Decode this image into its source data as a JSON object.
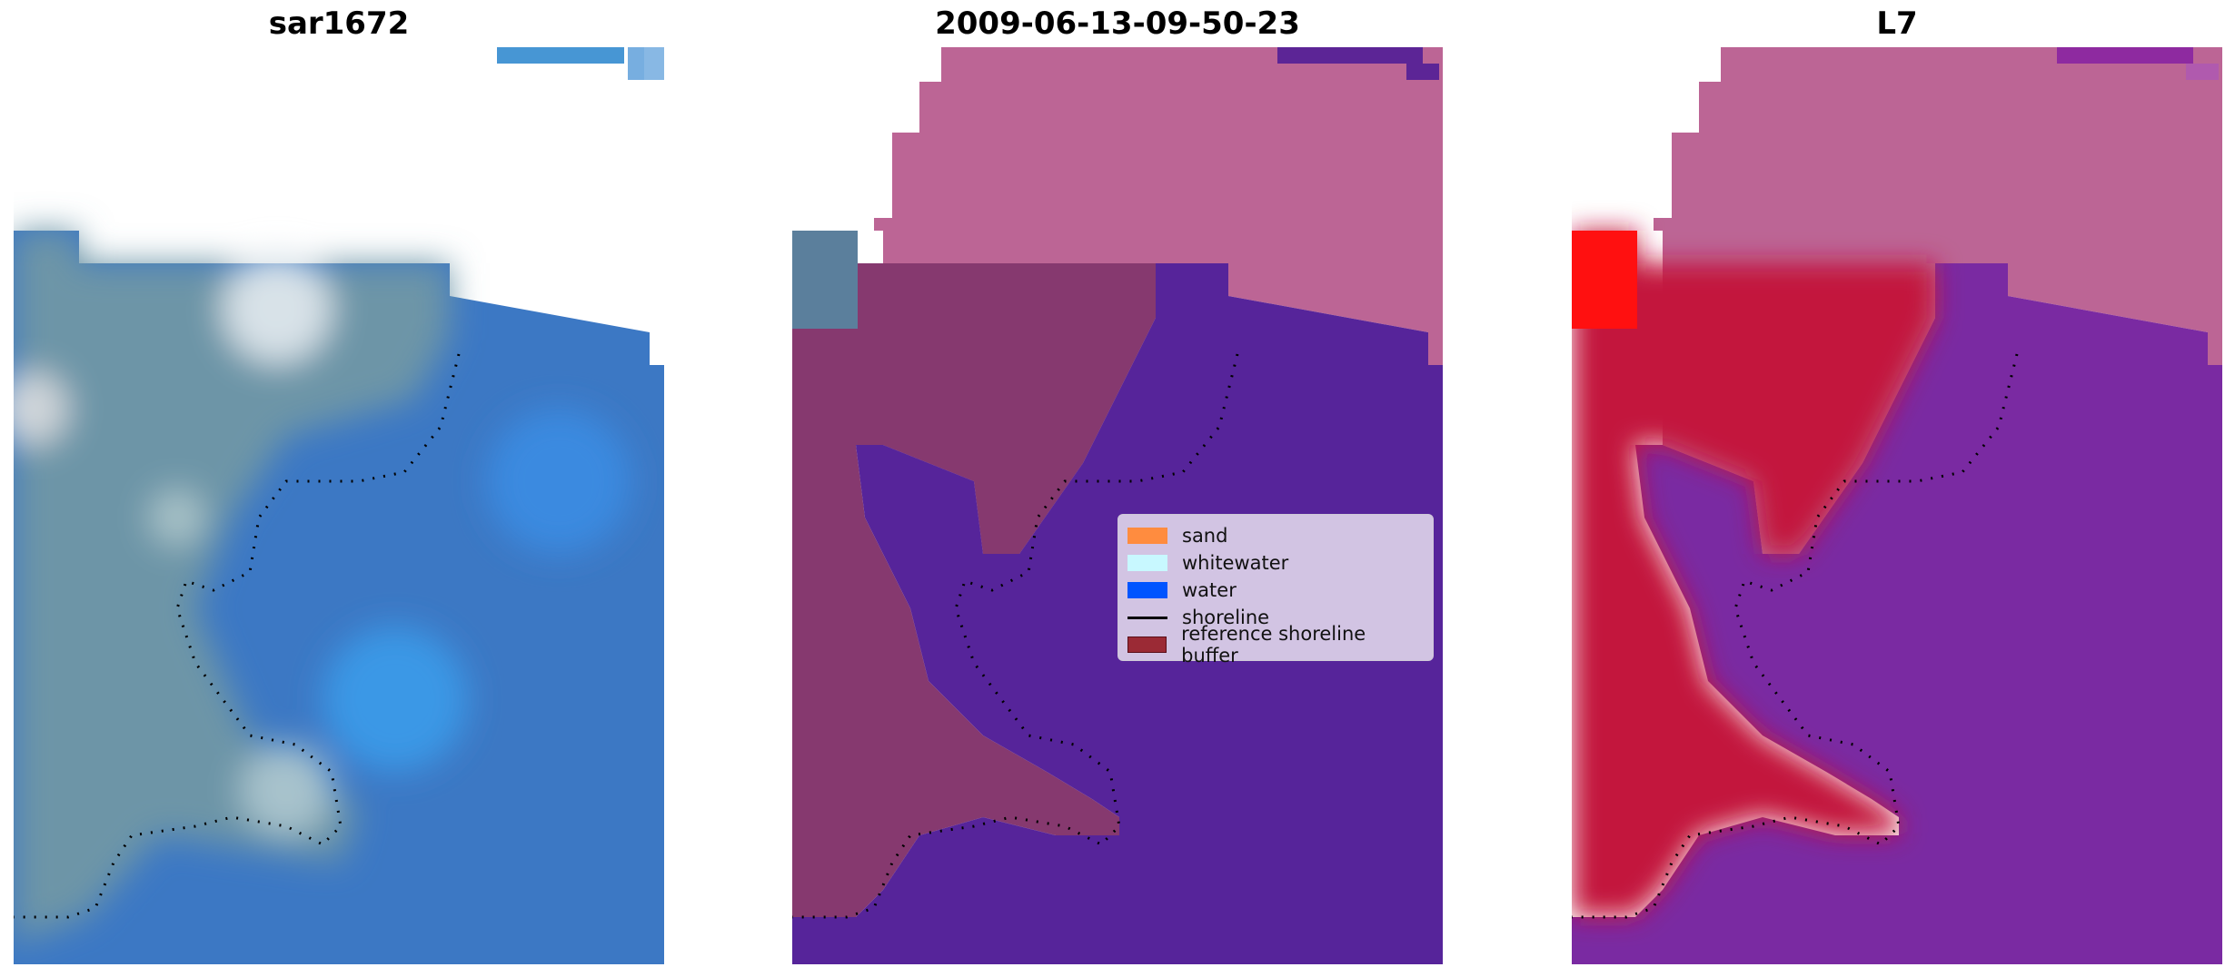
{
  "panels": [
    {
      "title": "sar1672"
    },
    {
      "title": "2009-06-13-09-50-23"
    },
    {
      "title": "L7"
    }
  ],
  "legend": {
    "items": [
      {
        "label": "sand",
        "color": "#ff8c3f",
        "kind": "patch"
      },
      {
        "label": "whitewater",
        "color": "#c8f8ff",
        "kind": "patch"
      },
      {
        "label": "water",
        "color": "#0054ff",
        "kind": "patch"
      },
      {
        "label": "shoreline",
        "color": "#000000",
        "kind": "line"
      },
      {
        "label": "reference shoreline buffer",
        "color": "#9b2a35",
        "kind": "patch"
      }
    ]
  },
  "colors": {
    "rgb_land": "#6e93a8",
    "rgb_water": "#3c7fd0",
    "classified_land": "#86396f",
    "classified_water": "#56249a",
    "classified_cloud": "#bc6595",
    "index_land": "#c3163c",
    "index_water": "#7a2aa2",
    "index_cloud": "#bc6595"
  }
}
